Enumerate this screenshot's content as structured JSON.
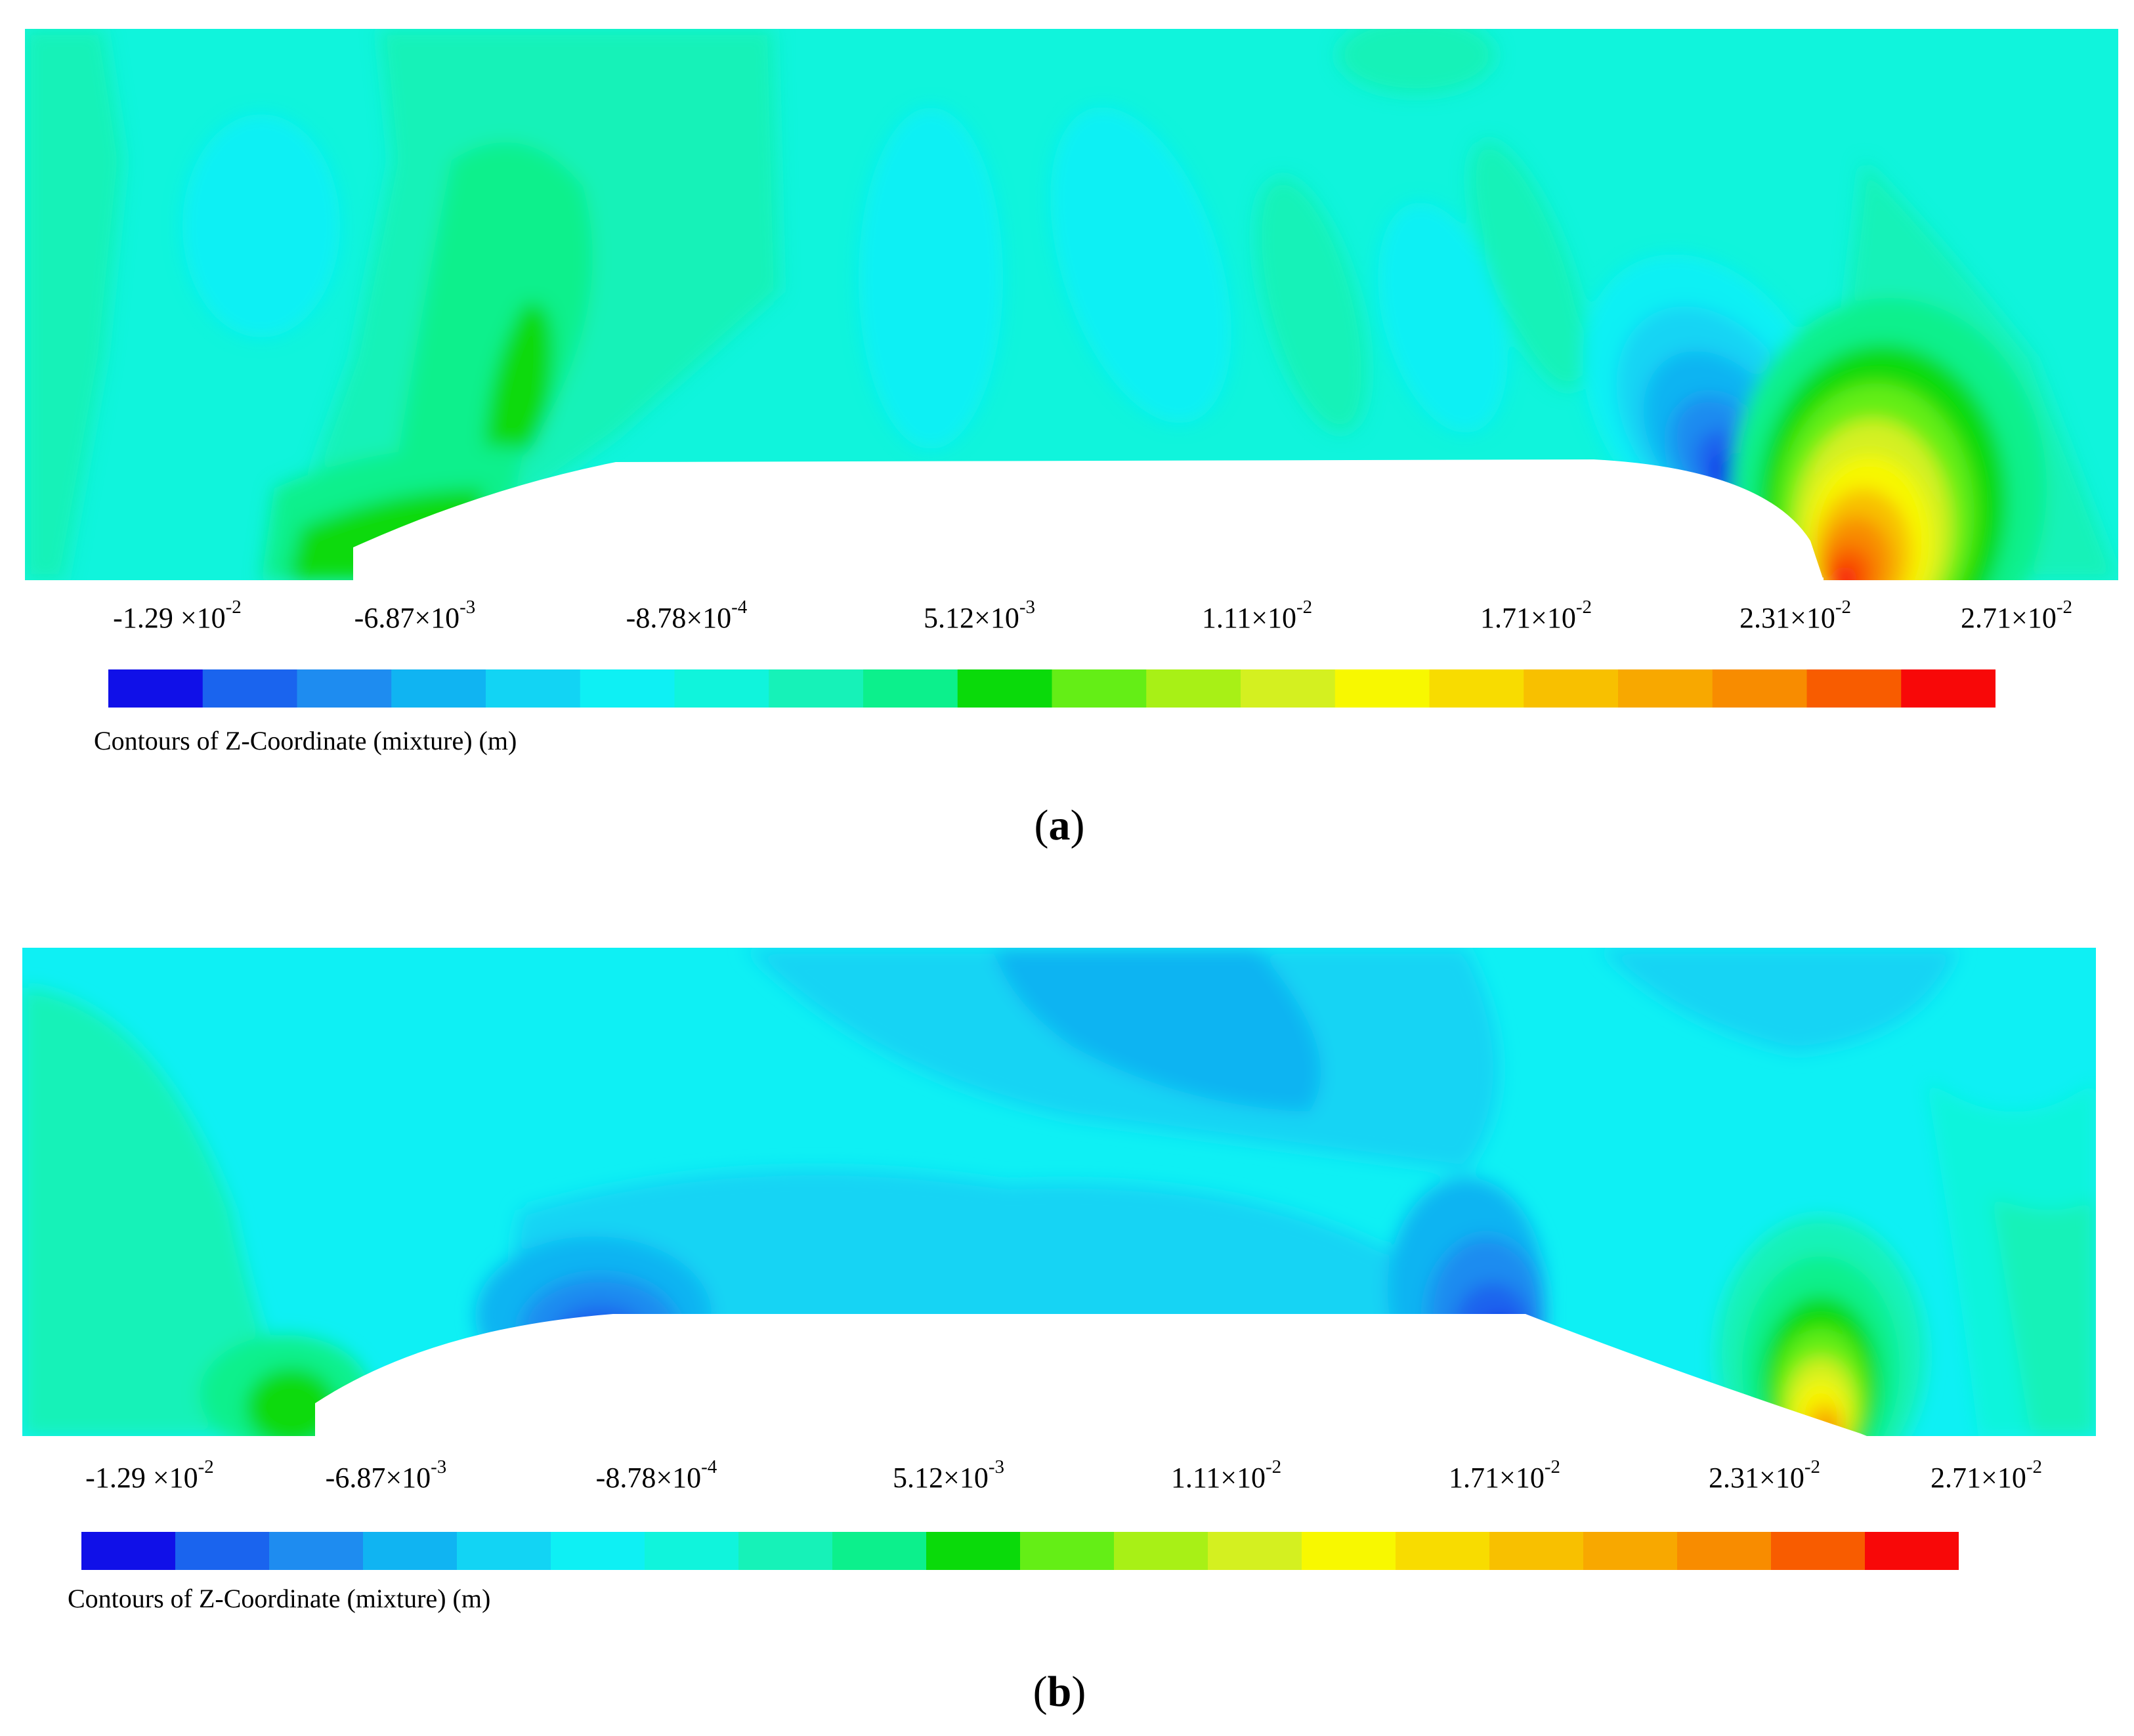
{
  "chart_data": [
    {
      "type": "heatmap",
      "panel": "a",
      "title": "Contours of Z-Coordinate (mixture) (m)",
      "colorbar": {
        "tick_labels": [
          {
            "mantissa": "-1.29 ×10",
            "exp": "-2"
          },
          {
            "mantissa": "-6.87×10",
            "exp": "-3"
          },
          {
            "mantissa": "-8.78×10",
            "exp": "-4"
          },
          {
            "mantissa": "5.12×10",
            "exp": "-3"
          },
          {
            "mantissa": "1.11×10",
            "exp": "-2"
          },
          {
            "mantissa": "1.71×10",
            "exp": "-2"
          },
          {
            "mantissa": "2.31×10",
            "exp": "-2"
          },
          {
            "mantissa": "2.71×10",
            "exp": "-2"
          }
        ],
        "range": [
          -0.0129,
          0.0271
        ],
        "levels": 20,
        "colors": [
          "#1010e8",
          "#1a64ee",
          "#1e8cf0",
          "#10b4f2",
          "#12d4f4",
          "#0ef0f4",
          "#10f4dc",
          "#16f2b8",
          "#0cf08c",
          "#0ada0a",
          "#64ee16",
          "#a8f016",
          "#d4f020",
          "#f8f800",
          "#f8dc00",
          "#f8c000",
          "#f8a800",
          "#f88c00",
          "#f85c00",
          "#f80808"
        ]
      },
      "label": "a"
    },
    {
      "type": "heatmap",
      "panel": "b",
      "title": "Contours of Z-Coordinate (mixture) (m)",
      "colorbar": {
        "tick_labels": [
          {
            "mantissa": "-1.29 ×10",
            "exp": "-2"
          },
          {
            "mantissa": "-6.87×10",
            "exp": "-3"
          },
          {
            "mantissa": "-8.78×10",
            "exp": "-4"
          },
          {
            "mantissa": "5.12×10",
            "exp": "-3"
          },
          {
            "mantissa": "1.11×10",
            "exp": "-2"
          },
          {
            "mantissa": "1.71×10",
            "exp": "-2"
          },
          {
            "mantissa": "2.31×10",
            "exp": "-2"
          },
          {
            "mantissa": "2.71×10",
            "exp": "-2"
          }
        ],
        "range": [
          -0.0129,
          0.0271
        ],
        "levels": 20,
        "colors": [
          "#1010e8",
          "#1a64ee",
          "#1e8cf0",
          "#10b4f2",
          "#12d4f4",
          "#0ef0f4",
          "#10f4dc",
          "#16f2b8",
          "#0cf08c",
          "#0ada0a",
          "#64ee16",
          "#a8f016",
          "#d4f020",
          "#f8f800",
          "#f8dc00",
          "#f8c000",
          "#f8a800",
          "#f88c00",
          "#f85c00",
          "#f80808"
        ]
      },
      "label": "b"
    }
  ]
}
